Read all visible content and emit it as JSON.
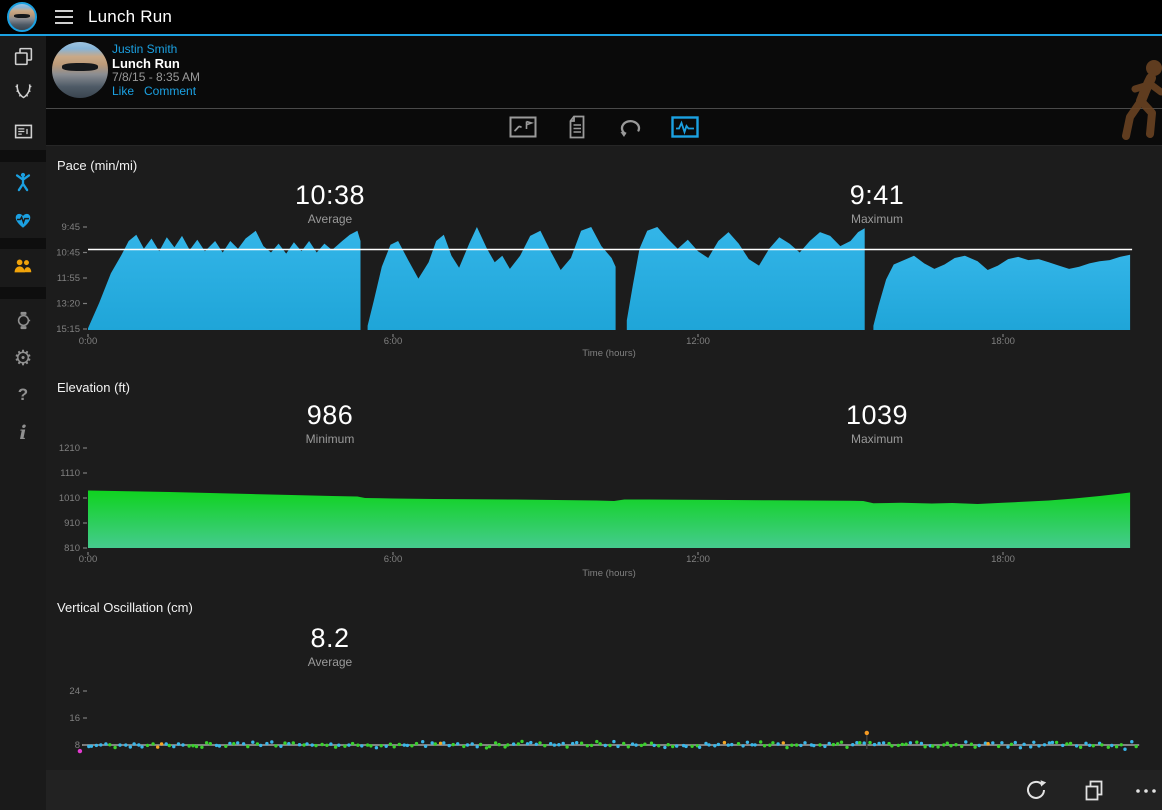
{
  "topbar": {
    "title": "Lunch Run"
  },
  "activity_header": {
    "user_name": "Justin Smith",
    "activity_title": "Lunch Run",
    "datetime": "7/8/15 - 8:35 AM",
    "like_label": "Like",
    "comment_label": "Comment"
  },
  "sidebar": {
    "items": [
      {
        "id": "activities",
        "icon": "stack-icon"
      },
      {
        "id": "challenges",
        "icon": "wreath-icon"
      },
      {
        "id": "news-feed",
        "icon": "newspaper-icon"
      },
      {
        "id": "insights",
        "icon": "person-arms-up-icon",
        "color": "#1ba1e2"
      },
      {
        "id": "health",
        "icon": "heart-pulse-icon",
        "color": "#1ba1e2"
      },
      {
        "id": "connections",
        "icon": "people-icon",
        "color": "#f0a30a"
      },
      {
        "id": "devices",
        "icon": "watch-icon"
      },
      {
        "id": "settings",
        "icon": "gear-icon",
        "glyph": "⚙"
      },
      {
        "id": "help",
        "icon": "question-icon",
        "glyph": "?"
      },
      {
        "id": "about",
        "icon": "info-icon",
        "glyph": "i"
      }
    ]
  },
  "tabs": [
    {
      "id": "snapshot",
      "icon": "map-snapshot-icon",
      "selected": false
    },
    {
      "id": "details",
      "icon": "details-list-icon",
      "selected": false
    },
    {
      "id": "laps",
      "icon": "laps-loop-icon",
      "selected": false
    },
    {
      "id": "charts",
      "icon": "charts-pulse-icon",
      "selected": true
    }
  ],
  "bottombar": {
    "actions": [
      {
        "id": "refresh",
        "icon": "refresh-icon"
      },
      {
        "id": "print",
        "icon": "print-icon"
      },
      {
        "id": "more",
        "icon": "ellipsis-icon"
      }
    ]
  },
  "colors": {
    "accent": "#1ba1e2",
    "pace_fill_top": "#33b5e8",
    "pace_fill_bottom": "#1fa5d8",
    "elevation_fill_top": "#0fd31f",
    "elevation_fill_bottom": "#45cb8e",
    "orange": "#f0a30a",
    "reference_line": "#ffffff"
  },
  "chart_data": [
    {
      "type": "area",
      "title": "Pace (min/mi)",
      "unit": "min/mi",
      "stats": [
        {
          "value": "10:38",
          "label": "Average"
        },
        {
          "value": "9:41",
          "label": "Maximum"
        }
      ],
      "xlabel": "Time (hours)",
      "x_ticks": [
        {
          "label": "0:00",
          "value": 0
        },
        {
          "label": "6:00",
          "value": 6
        },
        {
          "label": "12:00",
          "value": 12
        },
        {
          "label": "18:00",
          "value": 18
        }
      ],
      "y_ticks": [
        {
          "label": "9:45",
          "value": 9.75
        },
        {
          "label": "10:45",
          "value": 10.75
        },
        {
          "label": "11:55",
          "value": 11.917
        },
        {
          "label": "13:20",
          "value": 13.333
        },
        {
          "label": "15:15",
          "value": 15.25
        }
      ],
      "reference_line": {
        "value": 10.633,
        "color": "#ffffff"
      },
      "fill": {
        "top": "#33b5e8",
        "bottom": "#1fa5d8"
      },
      "segments": [
        [
          [
            0,
            15.2
          ],
          [
            0.22,
            13.3
          ],
          [
            0.45,
            11.7
          ],
          [
            0.65,
            10.9
          ],
          [
            0.8,
            10.3
          ],
          [
            0.95,
            10.05
          ],
          [
            1.1,
            10.6
          ],
          [
            1.25,
            10.2
          ],
          [
            1.4,
            10.7
          ],
          [
            1.55,
            10.15
          ],
          [
            1.7,
            10.55
          ],
          [
            1.85,
            10.1
          ],
          [
            2.0,
            10.65
          ],
          [
            2.15,
            10.25
          ],
          [
            2.3,
            10.7
          ],
          [
            2.5,
            10.3
          ],
          [
            2.65,
            10.75
          ],
          [
            2.8,
            10.3
          ],
          [
            2.95,
            10.6
          ],
          [
            3.1,
            10.2
          ],
          [
            3.3,
            9.9
          ],
          [
            3.45,
            10.5
          ],
          [
            3.6,
            10.75
          ],
          [
            3.75,
            10.4
          ],
          [
            3.9,
            10.8
          ],
          [
            4.05,
            10.35
          ],
          [
            4.2,
            10.7
          ],
          [
            4.35,
            10.3
          ],
          [
            4.5,
            10.75
          ],
          [
            4.65,
            10.4
          ],
          [
            4.8,
            10.65
          ],
          [
            5.0,
            10.3
          ],
          [
            5.15,
            10.05
          ],
          [
            5.3,
            9.9
          ],
          [
            5.36,
            10.3
          ]
        ],
        [
          [
            5.5,
            15.0
          ],
          [
            5.62,
            13.2
          ],
          [
            5.78,
            11.4
          ],
          [
            5.95,
            10.45
          ],
          [
            6.1,
            10.3
          ],
          [
            6.3,
            11.1
          ],
          [
            6.5,
            11.95
          ],
          [
            6.7,
            11.2
          ],
          [
            6.85,
            10.3
          ],
          [
            7.0,
            10.05
          ],
          [
            7.15,
            10.9
          ],
          [
            7.3,
            11.45
          ],
          [
            7.5,
            10.4
          ],
          [
            7.65,
            9.75
          ],
          [
            7.85,
            10.6
          ],
          [
            8.0,
            11.2
          ],
          [
            8.15,
            10.9
          ],
          [
            8.3,
            11.5
          ],
          [
            8.5,
            10.9
          ],
          [
            8.7,
            10.1
          ],
          [
            8.9,
            9.9
          ],
          [
            9.1,
            10.7
          ],
          [
            9.3,
            11.55
          ],
          [
            9.5,
            11.0
          ],
          [
            9.7,
            9.9
          ],
          [
            9.9,
            9.75
          ],
          [
            10.1,
            10.5
          ],
          [
            10.3,
            11.0
          ],
          [
            10.38,
            11.4
          ]
        ],
        [
          [
            10.6,
            14.6
          ],
          [
            10.72,
            12.3
          ],
          [
            10.85,
            10.6
          ],
          [
            11.0,
            9.9
          ],
          [
            11.2,
            9.75
          ],
          [
            11.4,
            10.2
          ],
          [
            11.6,
            10.6
          ],
          [
            11.8,
            10.25
          ],
          [
            12.0,
            10.7
          ],
          [
            12.2,
            11.0
          ],
          [
            12.4,
            10.3
          ],
          [
            12.6,
            9.95
          ],
          [
            12.8,
            10.4
          ],
          [
            13.0,
            11.05
          ],
          [
            13.2,
            11.35
          ],
          [
            13.4,
            10.6
          ],
          [
            13.6,
            10.15
          ],
          [
            13.8,
            10.4
          ],
          [
            14.0,
            10.75
          ],
          [
            14.2,
            10.3
          ],
          [
            14.4,
            9.95
          ],
          [
            14.6,
            10.1
          ],
          [
            14.8,
            10.5
          ],
          [
            15.0,
            10.3
          ],
          [
            15.15,
            9.95
          ],
          [
            15.28,
            9.8
          ]
        ],
        [
          [
            15.45,
            15.0
          ],
          [
            15.55,
            13.5
          ],
          [
            15.7,
            12.0
          ],
          [
            15.85,
            11.3
          ],
          [
            16.05,
            11.1
          ],
          [
            16.25,
            10.9
          ],
          [
            16.45,
            11.25
          ],
          [
            16.65,
            11.5
          ],
          [
            16.85,
            11.3
          ],
          [
            17.05,
            11.0
          ],
          [
            17.25,
            10.9
          ],
          [
            17.5,
            11.15
          ],
          [
            17.7,
            11.55
          ],
          [
            17.9,
            11.35
          ],
          [
            18.1,
            11.05
          ],
          [
            18.3,
            10.95
          ],
          [
            18.5,
            11.1
          ],
          [
            18.7,
            11.05
          ],
          [
            18.9,
            11.2
          ],
          [
            19.1,
            11.35
          ],
          [
            19.3,
            11.5
          ],
          [
            19.5,
            11.4
          ],
          [
            19.7,
            11.25
          ],
          [
            19.9,
            11.15
          ],
          [
            20.1,
            11.1
          ],
          [
            20.3,
            10.95
          ],
          [
            20.5,
            10.85
          ]
        ]
      ]
    },
    {
      "type": "area",
      "title": "Elevation (ft)",
      "unit": "ft",
      "stats": [
        {
          "value": "986",
          "label": "Minimum"
        },
        {
          "value": "1039",
          "label": "Maximum"
        }
      ],
      "xlabel": "Time (hours)",
      "x_ticks": [
        {
          "label": "0:00",
          "value": 0
        },
        {
          "label": "6:00",
          "value": 6
        },
        {
          "label": "12:00",
          "value": 12
        },
        {
          "label": "18:00",
          "value": 18
        }
      ],
      "y_ticks": [
        {
          "label": "1210",
          "value": 1210
        },
        {
          "label": "1110",
          "value": 1110
        },
        {
          "label": "1010",
          "value": 1010
        },
        {
          "label": "910",
          "value": 910
        },
        {
          "label": "810",
          "value": 810
        }
      ],
      "fill": {
        "top": "#0fd31f",
        "bottom": "#45cb8e"
      },
      "series": [
        [
          0,
          1040
        ],
        [
          0.8,
          1037
        ],
        [
          1.6,
          1034
        ],
        [
          2.4,
          1030
        ],
        [
          3.2,
          1026
        ],
        [
          4.0,
          1022
        ],
        [
          4.8,
          1018
        ],
        [
          5.3,
          1016
        ],
        [
          5.45,
          1010
        ],
        [
          6.0,
          1008
        ],
        [
          6.8,
          1006
        ],
        [
          7.6,
          1005
        ],
        [
          8.4,
          1004
        ],
        [
          9.2,
          1002
        ],
        [
          10.0,
          1000
        ],
        [
          10.35,
          998
        ],
        [
          10.55,
          1004
        ],
        [
          11.0,
          1004
        ],
        [
          11.8,
          1003
        ],
        [
          12.6,
          1002
        ],
        [
          13.4,
          1001
        ],
        [
          14.2,
          1000
        ],
        [
          15.0,
          999
        ],
        [
          15.25,
          998
        ],
        [
          15.45,
          989
        ],
        [
          16.0,
          991
        ],
        [
          16.6,
          988
        ],
        [
          17.0,
          990
        ],
        [
          17.5,
          986
        ],
        [
          18.0,
          991
        ],
        [
          18.4,
          995
        ],
        [
          18.9,
          1000
        ],
        [
          19.4,
          1008
        ],
        [
          19.9,
          1018
        ],
        [
          20.3,
          1027
        ],
        [
          20.5,
          1032
        ]
      ]
    },
    {
      "type": "scatter",
      "title": "Vertical Oscillation (cm)",
      "unit": "cm",
      "stats": [
        {
          "value": "8.2",
          "label": "Average"
        }
      ],
      "y_ticks": [
        {
          "label": "24",
          "value": 24
        },
        {
          "label": "16",
          "value": 16
        },
        {
          "label": "8",
          "value": 8
        }
      ],
      "baseline_line": {
        "value": 8,
        "color": "#909090"
      },
      "scatter": {
        "count": 230,
        "x_start": 0.0,
        "x_end": 20.6,
        "mean": 8.1,
        "jitter": 0.8,
        "dot_colors": [
          "#3ab6e8",
          "#39d02c"
        ],
        "rare_color": "#f5a623",
        "rare_prob": 0.02,
        "seed": 7
      },
      "outliers": [
        {
          "x": -0.16,
          "value": 6.2,
          "color": "#e33bd0",
          "stem": false
        },
        {
          "x": 15.32,
          "value": 11.6,
          "color": "#f59a23",
          "stem": true
        }
      ]
    }
  ]
}
